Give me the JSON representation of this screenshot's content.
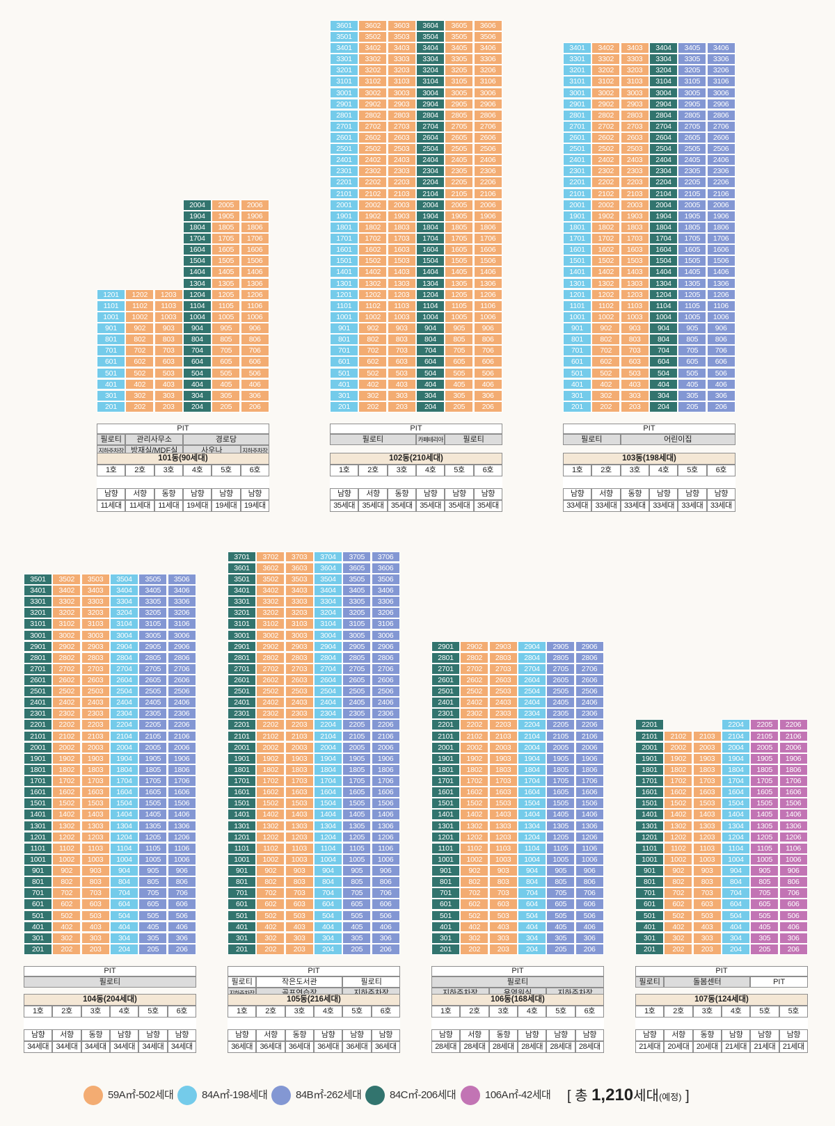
{
  "pit_label": "PIT",
  "buildings": [
    {
      "id": "101",
      "title": "101동(90세대)",
      "floor_ranges": [
        [
          2,
          12
        ],
        [
          2,
          12
        ],
        [
          2,
          12
        ],
        [
          2,
          20
        ],
        [
          2,
          20
        ],
        [
          2,
          20
        ]
      ],
      "types": [
        "84A",
        "59A",
        "59A",
        "84C",
        "59A",
        "59A"
      ],
      "base_rows": [
        [
          {
            "text": "필로티",
            "span": 1,
            "style": "g"
          },
          {
            "text": "관리사무소",
            "span": 2,
            "style": "g"
          },
          {
            "text": "경로당",
            "span": 3,
            "style": "g"
          }
        ],
        [
          {
            "text": "지하주차장",
            "span": 1,
            "style": "gs"
          },
          {
            "text": "방재실/MDF실",
            "span": 2,
            "style": "g"
          },
          {
            "text": "사우나",
            "span": 2,
            "style": "g"
          },
          {
            "text": "지하주차장",
            "span": 1,
            "style": "gs"
          }
        ]
      ],
      "units": {
        "numbers": [
          "1호",
          "2호",
          "3호",
          "4호",
          "5호",
          "6호"
        ],
        "types": [
          "84A",
          "59A",
          "59A",
          "84C",
          "59A",
          "59A"
        ],
        "directions": [
          "남향",
          "서향",
          "동향",
          "남향",
          "남향",
          "남향"
        ],
        "counts": [
          "11세대",
          "11세대",
          "11세대",
          "19세대",
          "19세대",
          "19세대"
        ]
      }
    },
    {
      "id": "102",
      "title": "102동(210세대)",
      "floor_ranges": [
        [
          2,
          36
        ],
        [
          2,
          36
        ],
        [
          2,
          36
        ],
        [
          2,
          36
        ],
        [
          2,
          36
        ],
        [
          2,
          36
        ]
      ],
      "types": [
        "84A",
        "59A",
        "59A",
        "84C",
        "59A",
        "59A"
      ],
      "base_rows": [
        [
          {
            "text": "필로티",
            "span": 3,
            "style": "g"
          },
          {
            "text": "카페테리아",
            "span": 1,
            "style": "gs"
          },
          {
            "text": "필로티",
            "span": 2,
            "style": "g"
          }
        ]
      ],
      "units": {
        "numbers": [
          "1호",
          "2호",
          "3호",
          "4호",
          "5호",
          "6호"
        ],
        "types": [
          "84A",
          "59A",
          "59A",
          "84C",
          "59A",
          "59A"
        ],
        "directions": [
          "남향",
          "서향",
          "동향",
          "남향",
          "남향",
          "남향"
        ],
        "counts": [
          "35세대",
          "35세대",
          "35세대",
          "35세대",
          "35세대",
          "35세대"
        ]
      }
    },
    {
      "id": "103",
      "title": "103동(198세대)",
      "floor_ranges": [
        [
          2,
          34
        ],
        [
          2,
          34
        ],
        [
          2,
          34
        ],
        [
          2,
          34
        ],
        [
          2,
          34
        ],
        [
          2,
          34
        ]
      ],
      "types": [
        "84A",
        "59A",
        "59A",
        "84C",
        "84B",
        "84B"
      ],
      "base_rows": [
        [
          {
            "text": "필로티",
            "span": 2,
            "style": "g"
          },
          {
            "text": "어린이집",
            "span": 4,
            "style": "g"
          }
        ]
      ],
      "units": {
        "numbers": [
          "1호",
          "2호",
          "3호",
          "4호",
          "5호",
          "6호"
        ],
        "types": [
          "84A",
          "59A",
          "59A",
          "84C",
          "84B",
          "84B"
        ],
        "directions": [
          "남향",
          "서향",
          "동향",
          "남향",
          "남향",
          "남향"
        ],
        "counts": [
          "33세대",
          "33세대",
          "33세대",
          "33세대",
          "33세대",
          "33세대"
        ]
      }
    },
    {
      "id": "104",
      "title": "104동(204세대)",
      "floor_ranges": [
        [
          2,
          35
        ],
        [
          2,
          35
        ],
        [
          2,
          35
        ],
        [
          2,
          35
        ],
        [
          2,
          35
        ],
        [
          2,
          35
        ]
      ],
      "types": [
        "84C",
        "59A",
        "59A",
        "84A",
        "84B",
        "84B"
      ],
      "base_rows": [
        [
          {
            "text": "필로티",
            "span": 6,
            "style": "g"
          }
        ]
      ],
      "units": {
        "numbers": [
          "1호",
          "2호",
          "3호",
          "4호",
          "5호",
          "6호"
        ],
        "types": [
          "84C",
          "59A",
          "59A",
          "84A",
          "84B",
          "84B"
        ],
        "directions": [
          "남향",
          "서향",
          "동향",
          "남향",
          "남향",
          "남향"
        ],
        "counts": [
          "34세대",
          "34세대",
          "34세대",
          "34세대",
          "34세대",
          "34세대"
        ]
      }
    },
    {
      "id": "105",
      "title": "105동(216세대)",
      "floor_ranges": [
        [
          2,
          37
        ],
        [
          2,
          37
        ],
        [
          2,
          37
        ],
        [
          2,
          37
        ],
        [
          2,
          37
        ],
        [
          2,
          37
        ]
      ],
      "types": [
        "84C",
        "59A",
        "59A",
        "84A",
        "84B",
        "84B"
      ],
      "base_rows": [
        [
          {
            "text": "필로티",
            "span": 1,
            "style": "w"
          },
          {
            "text": "작은도서관",
            "span": 3,
            "style": "w"
          },
          {
            "text": "필로티",
            "span": 2,
            "style": "w"
          }
        ],
        [
          {
            "text": "지하주차장",
            "span": 1,
            "style": "gs"
          },
          {
            "text": "골프연습장",
            "span": 3,
            "style": "g"
          },
          {
            "text": "지하주차장",
            "span": 2,
            "style": "g"
          }
        ]
      ],
      "units": {
        "numbers": [
          "1호",
          "2호",
          "3호",
          "4호",
          "5호",
          "6호"
        ],
        "types": [
          "84C",
          "59A",
          "59A",
          "84A",
          "84B",
          "84B"
        ],
        "directions": [
          "남향",
          "서향",
          "동향",
          "남향",
          "남향",
          "남향"
        ],
        "counts": [
          "36세대",
          "36세대",
          "36세대",
          "36세대",
          "36세대",
          "36세대"
        ]
      }
    },
    {
      "id": "106",
      "title": "106동(168세대)",
      "floor_ranges": [
        [
          2,
          29
        ],
        [
          2,
          29
        ],
        [
          2,
          29
        ],
        [
          2,
          29
        ],
        [
          2,
          29
        ],
        [
          2,
          29
        ]
      ],
      "types": [
        "84C",
        "59A",
        "59A",
        "84A",
        "84B",
        "84B"
      ],
      "base_rows": [
        [
          {
            "text": "필로티",
            "span": 6,
            "style": "g"
          }
        ],
        [
          {
            "text": "지하주차장",
            "span": 2,
            "style": "g"
          },
          {
            "text": "용역원실",
            "span": 2,
            "style": "g"
          },
          {
            "text": "지하주차장",
            "span": 2,
            "style": "g"
          }
        ]
      ],
      "units": {
        "numbers": [
          "1호",
          "2호",
          "3호",
          "4호",
          "5호",
          "6호"
        ],
        "types": [
          "84C",
          "59A",
          "59A",
          "84A",
          "84B",
          "84B"
        ],
        "directions": [
          "남향",
          "서향",
          "동향",
          "남향",
          "남향",
          "남향"
        ],
        "counts": [
          "28세대",
          "28세대",
          "28세대",
          "28세대",
          "28세대",
          "28세대"
        ]
      }
    },
    {
      "id": "107",
      "title": "107동(124세대)",
      "floor_ranges": [
        [
          2,
          22
        ],
        [
          2,
          21
        ],
        [
          2,
          21
        ],
        [
          2,
          22
        ],
        [
          2,
          22
        ],
        [
          2,
          22
        ]
      ],
      "types": [
        "84C",
        "59A",
        "59A",
        "84A",
        "106A",
        "106A"
      ],
      "base_rows": [
        [
          {
            "text": "필로티",
            "span": 1,
            "style": "g"
          },
          {
            "text": "돌봄센터",
            "span": 3,
            "style": "g"
          },
          {
            "text": "PIT",
            "span": 2,
            "style": "w"
          }
        ]
      ],
      "units": {
        "numbers": [
          "1호",
          "2호",
          "3호",
          "4호",
          "5호",
          "5호"
        ],
        "types": [
          "84C",
          "59A",
          "59A",
          "84A",
          "106",
          "106"
        ],
        "directions": [
          "남향",
          "서향",
          "동향",
          "남향",
          "남향",
          "남향"
        ],
        "counts": [
          "21세대",
          "20세대",
          "20세대",
          "21세대",
          "21세대",
          "21세대"
        ]
      }
    }
  ],
  "legend": [
    {
      "type": "59A",
      "label": "59A㎡-502세대",
      "color": "#f3ac72"
    },
    {
      "type": "84A",
      "label": "84A㎡-198세대",
      "color": "#74cbea"
    },
    {
      "type": "84B",
      "label": "84B㎡-262세대",
      "color": "#8397d3"
    },
    {
      "type": "84C",
      "label": "84C㎡-206세대",
      "color": "#32746e"
    },
    {
      "type": "106A",
      "label": "106A㎡-42세대",
      "color": "#c274b4"
    }
  ],
  "total": {
    "prefix": "[ 총 ",
    "count": "1,210",
    "suffix": "세대",
    "note": "(예정)",
    "close": " ]"
  }
}
